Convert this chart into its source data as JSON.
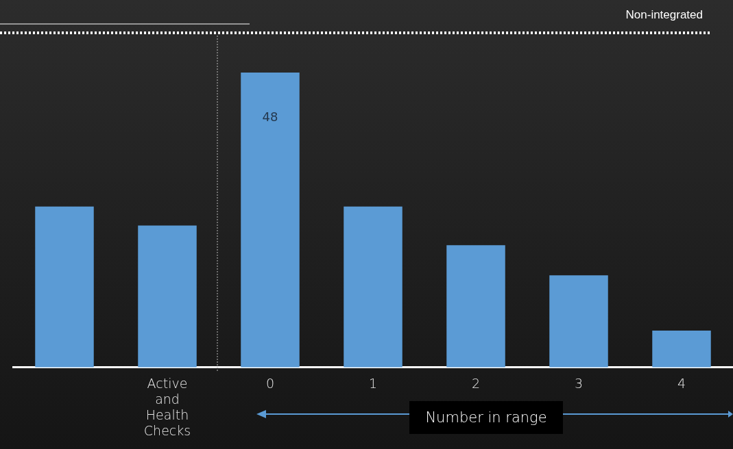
{
  "chart_data": {
    "type": "bar",
    "categories": [
      null,
      "Active and Health Checks",
      "0",
      "1",
      "2",
      "3",
      "4"
    ],
    "values": [
      26.2,
      23.1,
      48,
      26.2,
      19.9,
      15.0,
      6.0
    ],
    "value_labels": [
      null,
      null,
      "48",
      null,
      null,
      null,
      null
    ],
    "color": "#5b9bd5",
    "tick_labels": "x",
    "legend": false,
    "annotations": [
      "Non-integrated",
      "Number in range"
    ]
  }
}
